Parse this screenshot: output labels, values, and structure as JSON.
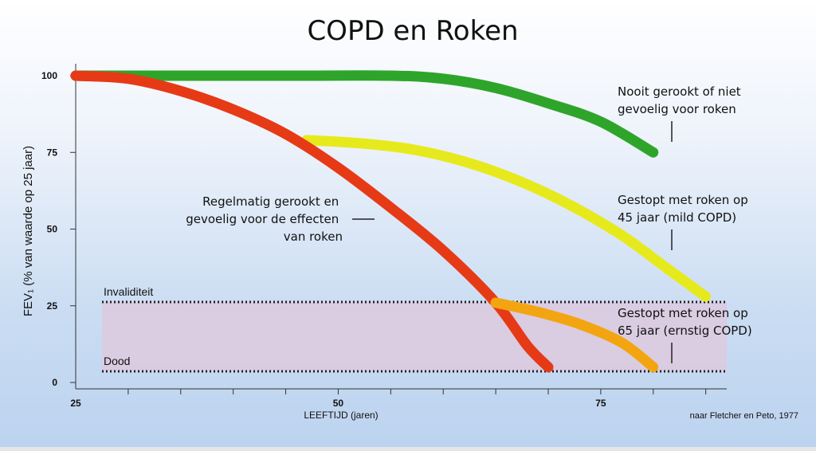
{
  "chart_data": {
    "type": "line",
    "title": "COPD en Roken",
    "xlabel": "LEEFTIJD (jaren)",
    "ylabel": "FEV₁ (% van waarde op 25 jaar)",
    "xlim": [
      25,
      87
    ],
    "ylim": [
      0,
      100
    ],
    "x_ticks": [
      25,
      50,
      75
    ],
    "y_ticks": [
      0,
      25,
      50,
      75,
      100
    ],
    "source_note": "naar Fletcher en Peto, 1977",
    "bands": [
      {
        "label": "Invaliditeit",
        "y": 27
      },
      {
        "label": "Dood",
        "y": 5
      }
    ],
    "series": [
      {
        "name": "Nooit gerookt of niet gevoelig voor roken",
        "label_lines": [
          "Nooit gerookt of niet",
          "gevoelig voor roken"
        ],
        "color": "#2ea52a",
        "points": [
          [
            25,
            100
          ],
          [
            45,
            100
          ],
          [
            55,
            100
          ],
          [
            60,
            99
          ],
          [
            65,
            96
          ],
          [
            70,
            91
          ],
          [
            75,
            85
          ],
          [
            80,
            75
          ]
        ]
      },
      {
        "name": "Gestopt met roken op 45 jaar (mild COPD)",
        "label_lines": [
          "Gestopt met roken op",
          "45 jaar (mild COPD)"
        ],
        "color": "#e6ea1c",
        "points": [
          [
            47,
            79
          ],
          [
            52,
            78
          ],
          [
            57,
            76
          ],
          [
            62,
            72
          ],
          [
            67,
            66
          ],
          [
            72,
            58
          ],
          [
            77,
            48
          ],
          [
            81,
            38
          ],
          [
            85,
            28
          ]
        ]
      },
      {
        "name": "Regelmatig gerookt en gevoelig voor de effecten van roken",
        "label_lines": [
          "Regelmatig gerookt en",
          "gevoelig voor de effecten",
          "van roken"
        ],
        "color": "#e63a17",
        "points": [
          [
            25,
            100
          ],
          [
            30,
            99
          ],
          [
            35,
            95
          ],
          [
            40,
            89
          ],
          [
            45,
            81
          ],
          [
            50,
            70
          ],
          [
            55,
            57
          ],
          [
            60,
            43
          ],
          [
            65,
            26
          ],
          [
            68,
            12
          ],
          [
            70,
            5
          ]
        ]
      },
      {
        "name": "Gestopt met roken op 65 jaar (ernstig COPD)",
        "label_lines": [
          "Gestopt met roken op",
          "65 jaar (ernstig COPD)"
        ],
        "color": "#f3a511",
        "points": [
          [
            65,
            26
          ],
          [
            69,
            23
          ],
          [
            73,
            19
          ],
          [
            77,
            13
          ],
          [
            80,
            5
          ]
        ]
      }
    ]
  }
}
